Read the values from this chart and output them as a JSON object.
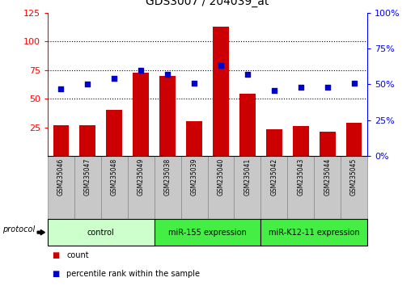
{
  "title": "GDS3007 / 204039_at",
  "samples": [
    "GSM235046",
    "GSM235047",
    "GSM235048",
    "GSM235049",
    "GSM235038",
    "GSM235039",
    "GSM235040",
    "GSM235041",
    "GSM235042",
    "GSM235043",
    "GSM235044",
    "GSM235045"
  ],
  "count_values": [
    27,
    27,
    40,
    73,
    70,
    30,
    113,
    54,
    23,
    26,
    21,
    29
  ],
  "percentile_values": [
    47,
    50,
    54,
    60,
    57,
    51,
    63,
    57,
    46,
    48,
    48,
    51
  ],
  "groups": [
    {
      "label": "control",
      "cols": [
        0,
        3
      ],
      "color": "#ccffcc"
    },
    {
      "label": "miR-155 expression",
      "cols": [
        4,
        7
      ],
      "color": "#44ee44"
    },
    {
      "label": "miR-K12-11 expression",
      "cols": [
        8,
        11
      ],
      "color": "#44ee44"
    }
  ],
  "ylim_left": [
    0,
    125
  ],
  "ylim_right": [
    0,
    100
  ],
  "yticks_left": [
    25,
    50,
    75,
    100,
    125
  ],
  "yticks_right": [
    0,
    25,
    50,
    75,
    100
  ],
  "ytick_labels_right": [
    "0%",
    "25%",
    "50%",
    "75%",
    "100%"
  ],
  "bar_color": "#cc0000",
  "dot_color": "#0000cc",
  "dotted_lines": [
    50,
    75,
    100
  ],
  "sample_cell_color": "#c8c8c8",
  "protocol_label": "protocol",
  "legend_items": [
    {
      "color": "#cc0000",
      "label": "count"
    },
    {
      "color": "#0000cc",
      "label": "percentile rank within the sample"
    }
  ]
}
